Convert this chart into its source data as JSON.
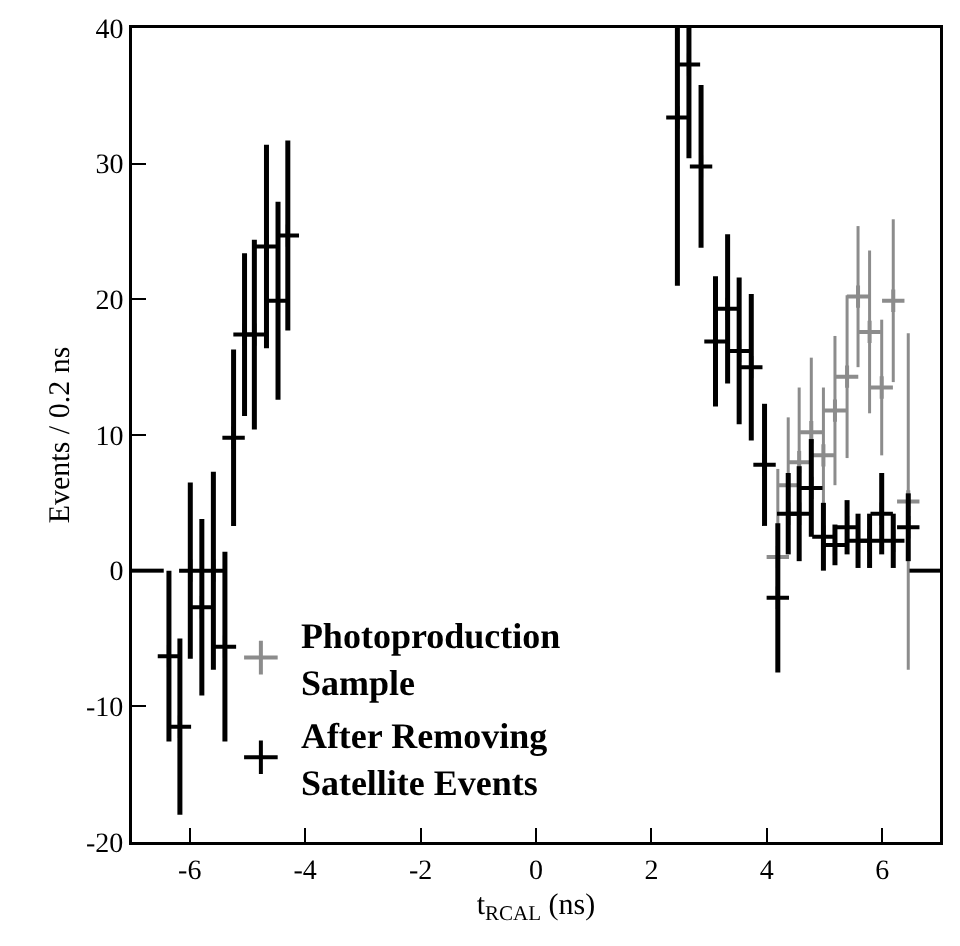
{
  "chart_data": {
    "type": "scatter",
    "xlabel": "t$_{RCAL}$ (ns)",
    "ylabel": "Events / 0.2 ns",
    "xlim": [
      -7,
      7
    ],
    "xticks": [
      -6,
      -4,
      -2,
      0,
      2,
      4,
      6
    ],
    "ylim": [
      -20,
      40
    ],
    "yticks": [
      -20,
      -10,
      0,
      10,
      20,
      30,
      40
    ],
    "grid": false,
    "legend": "bottom",
    "series": [
      {
        "name": "Photoproduction\nSample",
        "color": "#8c8c8c",
        "marker": "cross",
        "line_style": "dotted",
        "x": [
          4.19,
          4.37,
          4.56,
          4.77,
          4.98,
          5.18,
          5.39,
          5.58,
          5.78,
          5.99,
          6.19,
          6.45
        ],
        "values": [
          1.0,
          6.3,
          8.0,
          10.2,
          8.5,
          11.8,
          14.3,
          20.2,
          17.6,
          13.5,
          19.9,
          5.1
        ],
        "errors": [
          6.5,
          5,
          5.5,
          5.5,
          5,
          5.5,
          6,
          5.2,
          6,
          5,
          6,
          12.4
        ]
      },
      {
        "name": "After Removing\nSatellite Events",
        "color": "#000000",
        "marker": "cross",
        "line_style": "solid",
        "x": [
          -6.36,
          -6.17,
          -5.99,
          -5.79,
          -5.59,
          -5.39,
          -5.24,
          -5.05,
          -4.88,
          -4.67,
          -4.47,
          -4.3,
          2.45,
          2.65,
          2.86,
          3.11,
          3.32,
          3.52,
          3.73,
          3.96,
          4.19,
          4.37,
          4.56,
          4.77,
          4.98,
          5.18,
          5.39,
          5.58,
          5.78,
          5.99,
          6.19,
          6.45
        ],
        "values": [
          -6.3,
          -11.5,
          0,
          -2.7,
          0,
          -5.6,
          9.8,
          17.4,
          17.4,
          23.9,
          19.9,
          24.7,
          33.4,
          37.3,
          29.8,
          16.9,
          19.3,
          16.2,
          15.0,
          7.8,
          -2.0,
          4.2,
          4.2,
          6.1,
          2.5,
          1.9,
          3.2,
          2.2,
          2.2,
          4.2,
          2.2,
          3.2
        ],
        "errors": [
          6.3,
          6.5,
          6.5,
          6.5,
          7.3,
          7,
          6.5,
          6,
          7,
          7.5,
          7.3,
          7,
          [
            21,
            40
          ],
          [
            30.4,
            40
          ],
          6,
          4.8,
          5.5,
          5.4,
          5.4,
          4.5,
          5.5,
          3,
          3.5,
          3.6,
          2.5,
          1.5,
          2,
          2,
          2,
          3,
          2,
          2.5
        ]
      },
      {
        "type": "line",
        "color": "#000000",
        "x": [
          -7,
          -6.45
        ],
        "values": [
          0,
          0
        ]
      },
      {
        "type": "line",
        "color": "#000000",
        "x": [
          6.47,
          7
        ],
        "values": [
          0,
          0
        ]
      }
    ]
  }
}
